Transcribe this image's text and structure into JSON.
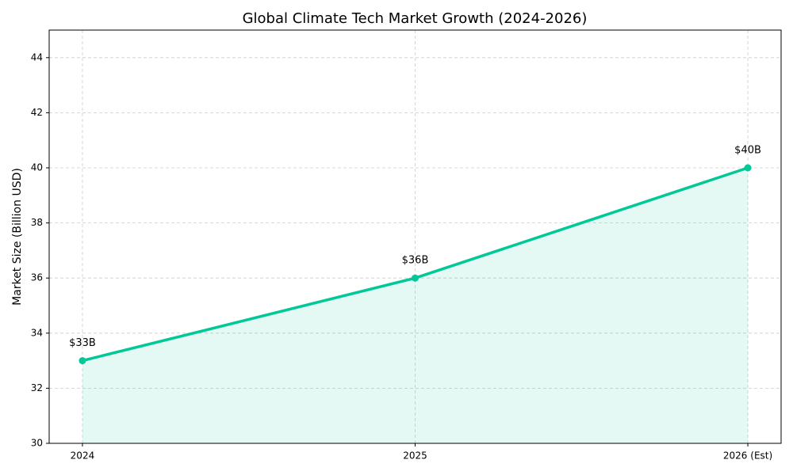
{
  "chart_data": {
    "type": "line",
    "title": "Global Climate Tech Market Growth (2024-2026)",
    "y_label": "Market Size (Billion USD)",
    "categories": [
      "2024",
      "2025",
      "2026 (Est)"
    ],
    "values": [
      33,
      36,
      40
    ],
    "value_labels": [
      "$33B",
      "$36B",
      "$40B"
    ],
    "color": "#00c896",
    "ylim": [
      30,
      45
    ],
    "yticks": [
      30,
      32,
      34,
      36,
      38,
      40,
      42,
      44
    ],
    "grid": true
  }
}
